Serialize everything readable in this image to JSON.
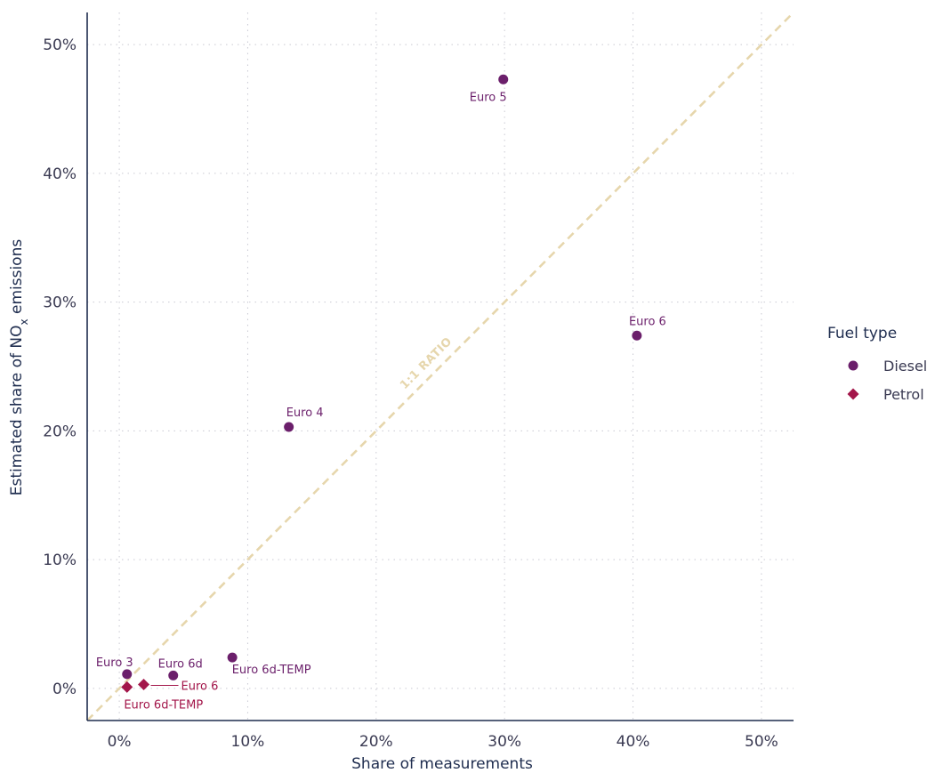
{
  "chart_data": {
    "type": "scatter",
    "xlabel": "Share of measurements",
    "ylabel_prefix": "Estimated share of NO",
    "ylabel_subscript": "x",
    "ylabel_suffix": " emissions",
    "xlim": [
      -2.5,
      52.5
    ],
    "ylim": [
      -2.5,
      52.5
    ],
    "x_ticks": [
      0,
      10,
      20,
      30,
      40,
      50
    ],
    "y_ticks": [
      0,
      10,
      20,
      30,
      40,
      50
    ],
    "x_tick_labels": [
      "0%",
      "10%",
      "20%",
      "30%",
      "40%",
      "50%"
    ],
    "y_tick_labels": [
      "0%",
      "10%",
      "20%",
      "30%",
      "40%",
      "50%"
    ],
    "grid": true,
    "reference_line": {
      "type": "1:1",
      "label": "1:1 RATIO",
      "color": "#e6d6ac"
    },
    "legend": {
      "title": "Fuel type",
      "placement": "right"
    },
    "series": [
      {
        "name": "Diesel",
        "marker": "circle",
        "color": "#6b1f6b",
        "points": [
          {
            "label": "Euro 3",
            "x": 0.6,
            "y": 1.1,
            "label_anchor": "above"
          },
          {
            "label": "Euro 6d",
            "x": 4.2,
            "y": 1.0,
            "label_anchor": "above"
          },
          {
            "label": "Euro 6d-TEMP",
            "x": 8.8,
            "y": 2.4,
            "label_anchor": "below"
          },
          {
            "label": "Euro 4",
            "x": 13.2,
            "y": 20.3,
            "label_anchor": "above"
          },
          {
            "label": "Euro 5",
            "x": 29.9,
            "y": 47.3,
            "label_anchor": "below"
          },
          {
            "label": "Euro 6",
            "x": 40.3,
            "y": 27.4,
            "label_anchor": "above"
          }
        ]
      },
      {
        "name": "Petrol",
        "marker": "diamond",
        "color": "#a3164a",
        "points": [
          {
            "label": "Euro 6d-TEMP",
            "x": 0.6,
            "y": 0.1,
            "label_anchor": "below"
          },
          {
            "label": "Euro 6",
            "x": 1.9,
            "y": 0.3,
            "label_anchor": "right"
          }
        ]
      }
    ]
  }
}
